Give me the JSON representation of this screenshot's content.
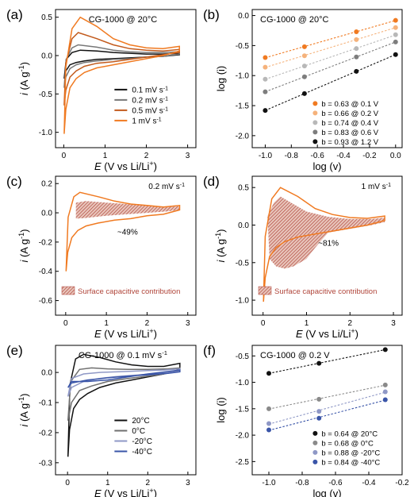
{
  "chart_data": [
    {
      "panel": "(a)",
      "type": "line",
      "title": "CG-1000 @ 20°C",
      "xlabel": "E (V vs Li/Li⁺)",
      "ylabel": "i (A g⁻¹)",
      "xlim": [
        -0.2,
        3.2
      ],
      "ylim": [
        -1.2,
        0.6
      ],
      "xticks": [
        "0",
        "1",
        "2",
        "3"
      ],
      "yticks": [
        "-1.0",
        "-0.5",
        "0.0",
        "0.5"
      ],
      "legend": "bottom-right",
      "series": [
        {
          "name": "0.1 mV s⁻¹",
          "color": "#111111",
          "x": [
            0.01,
            0.06,
            0.2,
            0.4,
            0.8,
            1.2,
            1.6,
            2.0,
            2.4,
            2.8,
            2.8,
            2.4,
            2.0,
            1.6,
            1.2,
            0.8,
            0.5,
            0.3,
            0.15,
            0.05,
            0.01
          ],
          "y": [
            -0.3,
            -0.05,
            0.04,
            0.07,
            0.06,
            0.04,
            0.03,
            0.02,
            0.02,
            0.03,
            0.01,
            -0.01,
            -0.02,
            -0.03,
            -0.04,
            -0.05,
            -0.07,
            -0.09,
            -0.12,
            -0.2,
            -0.3
          ]
        },
        {
          "name": "0.2 mV s⁻¹",
          "color": "#777777",
          "x": [
            0.01,
            0.06,
            0.2,
            0.35,
            0.8,
            1.2,
            1.6,
            2.0,
            2.4,
            2.8,
            2.8,
            2.4,
            2.0,
            1.6,
            1.2,
            0.8,
            0.5,
            0.3,
            0.15,
            0.05,
            0.01
          ],
          "y": [
            -0.42,
            -0.05,
            0.1,
            0.14,
            0.11,
            0.07,
            0.05,
            0.04,
            0.04,
            0.05,
            0.02,
            -0.01,
            -0.02,
            -0.04,
            -0.05,
            -0.07,
            -0.09,
            -0.12,
            -0.17,
            -0.28,
            -0.42
          ]
        },
        {
          "name": "0.5 mV s⁻¹",
          "color": "#c25a1c",
          "x": [
            0.01,
            0.05,
            0.2,
            0.35,
            0.8,
            1.2,
            1.6,
            2.0,
            2.4,
            2.8,
            2.8,
            2.4,
            2.0,
            1.6,
            1.2,
            0.8,
            0.5,
            0.3,
            0.15,
            0.05,
            0.01
          ],
          "y": [
            -0.65,
            -0.1,
            0.22,
            0.3,
            0.22,
            0.14,
            0.09,
            0.07,
            0.06,
            0.08,
            0.04,
            0.01,
            -0.02,
            -0.05,
            -0.08,
            -0.1,
            -0.14,
            -0.2,
            -0.28,
            -0.45,
            -0.65
          ]
        },
        {
          "name": "1 mV s⁻¹",
          "color": "#f07a21",
          "x": [
            0.01,
            0.05,
            0.2,
            0.4,
            0.8,
            1.2,
            1.6,
            2.0,
            2.4,
            2.8,
            2.8,
            2.4,
            2.0,
            1.6,
            1.2,
            0.8,
            0.5,
            0.3,
            0.15,
            0.05,
            0.01
          ],
          "y": [
            -1.02,
            -0.15,
            0.35,
            0.5,
            0.38,
            0.22,
            0.14,
            0.1,
            0.09,
            0.12,
            0.06,
            0.0,
            -0.04,
            -0.08,
            -0.12,
            -0.16,
            -0.22,
            -0.3,
            -0.42,
            -0.7,
            -1.02
          ]
        }
      ]
    },
    {
      "panel": "(b)",
      "type": "scatter",
      "title": "CG-1000 @ 20°C",
      "xlabel": "log (v)",
      "ylabel": "log (i)",
      "xlim": [
        -1.1,
        0.05
      ],
      "ylim": [
        -2.2,
        0.1
      ],
      "xticks": [
        "-1.0",
        "-0.8",
        "-0.6",
        "-0.4",
        "-0.2",
        "0.0"
      ],
      "yticks": [
        "-2.0",
        "-1.5",
        "-1.0",
        "-0.5",
        "0.0"
      ],
      "legend": "bottom-right",
      "series": [
        {
          "name": "b = 0.63 @ 0.1 V",
          "color": "#f07a21",
          "x": [
            -1.0,
            -0.699,
            -0.301,
            0.0
          ],
          "y": [
            -0.7,
            -0.52,
            -0.27,
            -0.08
          ]
        },
        {
          "name": "b = 0.66 @ 0.2 V",
          "color": "#f5b27b",
          "x": [
            -1.0,
            -0.699,
            -0.301,
            0.0
          ],
          "y": [
            -0.86,
            -0.67,
            -0.4,
            -0.2
          ]
        },
        {
          "name": "b = 0.74 @ 0.4 V",
          "color": "#b8b8b8",
          "x": [
            -1.0,
            -0.699,
            -0.301,
            0.0
          ],
          "y": [
            -1.06,
            -0.84,
            -0.55,
            -0.32
          ]
        },
        {
          "name": "b = 0.83 @ 0.6 V",
          "color": "#7d7d7d",
          "x": [
            -1.0,
            -0.699,
            -0.301,
            0.0
          ],
          "y": [
            -1.27,
            -1.02,
            -0.69,
            -0.44
          ]
        },
        {
          "name": "b = 0.93 @ 1.2 V",
          "color": "#111111",
          "x": [
            -1.0,
            -0.699,
            -0.301,
            0.0
          ],
          "y": [
            -1.58,
            -1.3,
            -0.93,
            -0.65
          ]
        }
      ]
    },
    {
      "panel": "(c)",
      "type": "area",
      "title": "0.2 mV s⁻¹",
      "xlabel": "E (V vs Li/Li⁺)",
      "ylabel": "i (A g⁻¹)",
      "xlim": [
        -0.25,
        3.2
      ],
      "ylim": [
        -0.7,
        0.25
      ],
      "xticks": [
        "0",
        "1",
        "2",
        "3"
      ],
      "yticks": [
        "-0.6",
        "-0.4",
        "-0.2",
        "0.0",
        "0.2"
      ],
      "annotation": "~49%",
      "legend_label": "Surface capacitive contribution",
      "cv": {
        "x": [
          0.01,
          0.06,
          0.2,
          0.35,
          0.8,
          1.2,
          1.6,
          2.0,
          2.4,
          2.8,
          2.8,
          2.4,
          2.0,
          1.6,
          1.2,
          0.8,
          0.5,
          0.3,
          0.15,
          0.05,
          0.01
        ],
        "y": [
          -0.4,
          -0.03,
          0.11,
          0.14,
          0.11,
          0.08,
          0.06,
          0.05,
          0.04,
          0.05,
          0.02,
          -0.01,
          -0.02,
          -0.04,
          -0.05,
          -0.07,
          -0.09,
          -0.12,
          -0.17,
          -0.27,
          -0.4
        ]
      },
      "capacitive": {
        "x": [
          0.25,
          0.5,
          1.0,
          1.5,
          2.0,
          2.5,
          2.8,
          2.8,
          2.5,
          2.0,
          1.5,
          1.0,
          0.5,
          0.25
        ],
        "y": [
          0.07,
          0.08,
          0.07,
          0.06,
          0.05,
          0.04,
          0.045,
          0.02,
          0.01,
          -0.0,
          -0.01,
          -0.02,
          -0.035,
          -0.04
        ]
      }
    },
    {
      "panel": "(d)",
      "type": "area",
      "title": "1 mV s⁻¹",
      "xlabel": "E (V vs Li/Li⁺)",
      "ylabel": "i (A g⁻¹)",
      "xlim": [
        -0.25,
        3.2
      ],
      "ylim": [
        -1.2,
        0.65
      ],
      "xticks": [
        "0",
        "1",
        "2",
        "3"
      ],
      "yticks": [
        "-1.0",
        "-0.5",
        "0.0",
        "0.5"
      ],
      "annotation": "~81%",
      "legend_label": "Surface capacitive contribution",
      "cv": {
        "x": [
          0.01,
          0.05,
          0.2,
          0.4,
          0.8,
          1.2,
          1.6,
          2.0,
          2.4,
          2.8,
          2.8,
          2.4,
          2.0,
          1.6,
          1.2,
          0.8,
          0.5,
          0.3,
          0.15,
          0.05,
          0.01
        ],
        "y": [
          -1.02,
          -0.15,
          0.35,
          0.5,
          0.38,
          0.22,
          0.14,
          0.1,
          0.09,
          0.12,
          0.06,
          0.0,
          -0.04,
          -0.08,
          -0.12,
          -0.16,
          -0.22,
          -0.3,
          -0.42,
          -0.7,
          -1.02
        ]
      },
      "capacitive": {
        "x": [
          0.1,
          0.25,
          0.4,
          0.7,
          1.0,
          1.5,
          2.0,
          2.5,
          2.8,
          2.8,
          2.5,
          2.0,
          1.5,
          1.2,
          1.0,
          0.7,
          0.5,
          0.3,
          0.15,
          0.1
        ],
        "y": [
          0.12,
          0.3,
          0.38,
          0.28,
          0.18,
          0.11,
          0.08,
          0.08,
          0.1,
          0.04,
          0.0,
          -0.05,
          -0.1,
          -0.3,
          -0.45,
          -0.55,
          -0.58,
          -0.55,
          -0.45,
          0.12
        ]
      }
    },
    {
      "panel": "(e)",
      "type": "line",
      "title": "CG-1000 @ 0.1 mV s⁻¹",
      "xlabel": "E (V vs Li/Li⁺)",
      "ylabel": "i (A g⁻¹)",
      "xlim": [
        -0.3,
        3.2
      ],
      "ylim": [
        -0.34,
        0.09
      ],
      "xticks": [
        "0",
        "1",
        "2",
        "3"
      ],
      "yticks": [
        "-0.3",
        "-0.2",
        "-0.1",
        "0.0"
      ],
      "legend": "bottom-right",
      "series": [
        {
          "name": "20°C",
          "color": "#111111",
          "x": [
            0.01,
            0.06,
            0.2,
            0.4,
            0.8,
            1.2,
            1.6,
            2.0,
            2.4,
            2.8,
            2.8,
            2.4,
            2.0,
            1.6,
            1.2,
            0.8,
            0.5,
            0.3,
            0.15,
            0.05,
            0.01
          ],
          "y": [
            -0.28,
            -0.04,
            0.045,
            0.06,
            0.05,
            0.035,
            0.025,
            0.02,
            0.02,
            0.03,
            0.01,
            -0.005,
            -0.015,
            -0.025,
            -0.035,
            -0.05,
            -0.07,
            -0.09,
            -0.12,
            -0.19,
            -0.28
          ]
        },
        {
          "name": "0°C",
          "color": "#6f6f6f",
          "x": [
            0.01,
            0.08,
            0.3,
            0.6,
            1.0,
            1.5,
            2.0,
            2.5,
            2.8,
            2.8,
            2.4,
            2.0,
            1.5,
            1.0,
            0.6,
            0.3,
            0.1,
            0.01
          ],
          "y": [
            -0.16,
            -0.03,
            0.01,
            0.015,
            0.012,
            0.01,
            0.01,
            0.012,
            0.015,
            0.005,
            -0.005,
            -0.012,
            -0.02,
            -0.03,
            -0.045,
            -0.06,
            -0.1,
            -0.16
          ]
        },
        {
          "name": "-20°C",
          "color": "#8f98c6",
          "x": [
            0.01,
            0.1,
            0.4,
            0.8,
            1.2,
            1.6,
            2.0,
            2.4,
            2.8,
            2.8,
            2.4,
            2.0,
            1.6,
            1.2,
            0.8,
            0.4,
            0.1,
            0.01
          ],
          "y": [
            -0.08,
            -0.02,
            -0.005,
            0.0,
            0.002,
            0.004,
            0.006,
            0.008,
            0.012,
            0.004,
            -0.002,
            -0.006,
            -0.01,
            -0.014,
            -0.02,
            -0.03,
            -0.05,
            -0.08
          ]
        },
        {
          "name": "-40°C",
          "color": "#3a55a8",
          "x": [
            0.01,
            0.1,
            0.5,
            1.0,
            1.5,
            2.0,
            2.5,
            2.8,
            2.8,
            2.5,
            2.0,
            1.5,
            1.0,
            0.5,
            0.1,
            0.01
          ],
          "y": [
            -0.05,
            -0.03,
            -0.03,
            -0.025,
            -0.015,
            -0.005,
            0.003,
            0.008,
            0.002,
            -0.003,
            -0.008,
            -0.012,
            -0.018,
            -0.025,
            -0.035,
            -0.05
          ]
        }
      ]
    },
    {
      "panel": "(f)",
      "type": "scatter",
      "title": "CG-1000 @ 0.2 V",
      "xlabel": "log (v)",
      "ylabel": "log (i)",
      "xlim": [
        -1.1,
        -0.2
      ],
      "ylim": [
        -2.75,
        -0.3
      ],
      "xticks": [
        "-1.0",
        "-0.8",
        "-0.6",
        "-0.4",
        "-0.2"
      ],
      "yticks": [
        "-2.5",
        "-2.0",
        "-1.5",
        "-1.0",
        "-0.5"
      ],
      "legend": "bottom-right",
      "series": [
        {
          "name": "b = 0.64 @ 20°C",
          "color": "#111111",
          "x": [
            -1.0,
            -0.699,
            -0.301
          ],
          "y": [
            -0.83,
            -0.64,
            -0.38
          ]
        },
        {
          "name": "b = 0.68 @ 0°C",
          "color": "#8a8a8a",
          "x": [
            -1.0,
            -0.699,
            -0.301
          ],
          "y": [
            -1.5,
            -1.32,
            -1.05
          ]
        },
        {
          "name": "b = 0.88 @ -20°C",
          "color": "#8f98c6",
          "x": [
            -1.0,
            -0.699,
            -0.301
          ],
          "y": [
            -1.78,
            -1.55,
            -1.18
          ]
        },
        {
          "name": "b = 0.84 @ -40°C",
          "color": "#3a55a8",
          "x": [
            -1.0,
            -0.699,
            -0.301
          ],
          "y": [
            -1.9,
            -1.68,
            -1.33
          ]
        }
      ]
    }
  ]
}
